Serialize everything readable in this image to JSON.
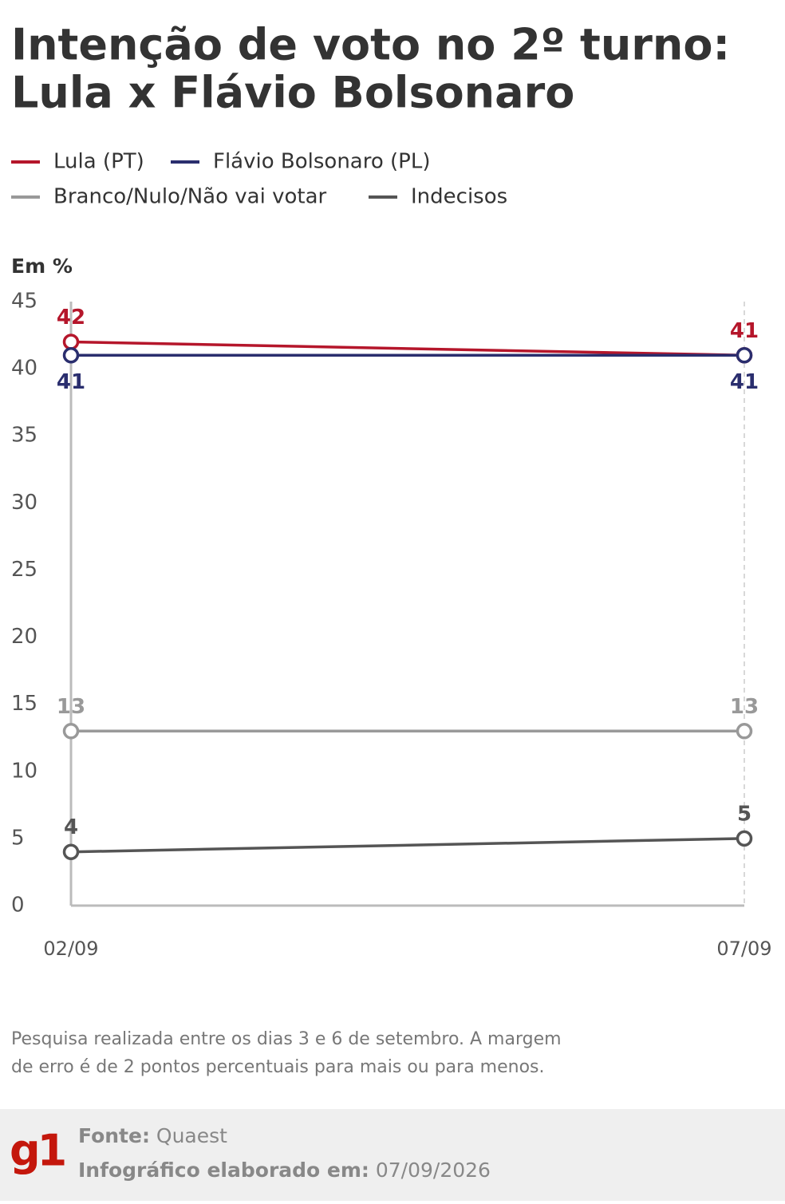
{
  "chart_data": {
    "type": "line",
    "title": [
      "Intenção de voto no 2º turno:",
      "Lula x Flávio Bolsonaro"
    ],
    "ylabel": "Em %",
    "categories": [
      "02/09",
      "07/09"
    ],
    "series": [
      {
        "name": "Lula (PT)",
        "color": "#b5162b",
        "values": [
          42,
          41
        ]
      },
      {
        "name": "Flávio Bolsonaro (PL)",
        "color": "#2a2e6e",
        "values": [
          41,
          41
        ]
      },
      {
        "name": "Branco/Nulo/Não vai votar",
        "color": "#999999",
        "values": [
          13,
          13
        ]
      },
      {
        "name": "Indecisos",
        "color": "#555555",
        "values": [
          4,
          5
        ]
      }
    ],
    "ylim": [
      0,
      45
    ],
    "yticks": [
      0,
      5,
      10,
      15,
      20,
      25,
      30,
      35,
      40,
      45
    ],
    "note": [
      "Pesquisa realizada entre os dias 3 e 6 de setembro. A margem",
      "de erro é de 2 pontos percentuais para mais ou para menos."
    ],
    "source_label": "Fonte:",
    "source": "Quaest",
    "date_label": "Infográfico elaborado em:",
    "date": "07/09/2026",
    "logo": "g1"
  }
}
